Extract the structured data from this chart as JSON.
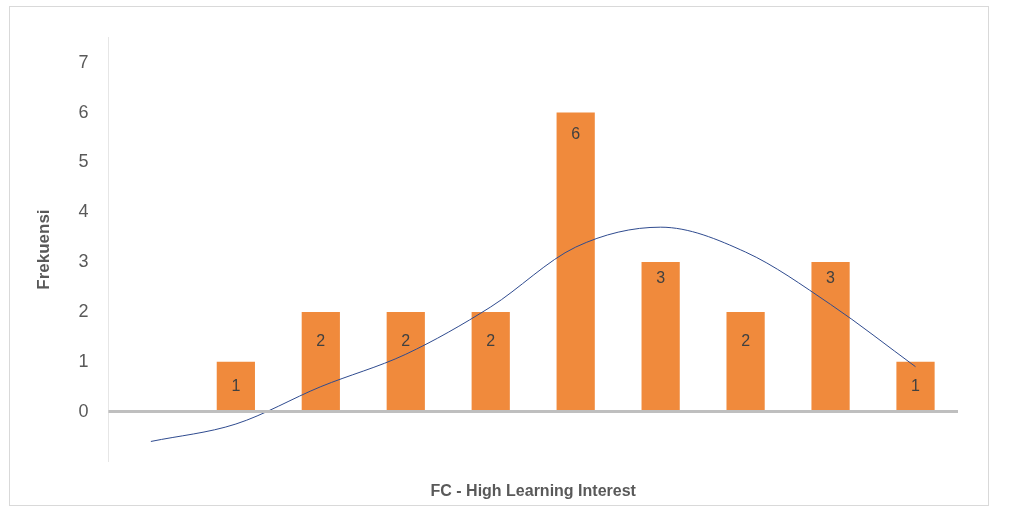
{
  "chart_data": {
    "type": "bar",
    "xlabel": "FC - High Learning Interest",
    "ylabel": "Frekuensi",
    "categories": [
      null,
      null,
      null,
      null,
      null,
      null,
      null,
      null,
      null,
      null
    ],
    "series": [
      {
        "color": "#f08a3c",
        "values": [
          null,
          1,
          2,
          2,
          2,
          6,
          3,
          2,
          3,
          1
        ],
        "value_labels": [
          null,
          "1",
          "2",
          "2",
          "2",
          "6",
          "3",
          "2",
          "3",
          "1"
        ]
      },
      {
        "type": "line",
        "color": "#2f4b8f",
        "values": [
          -0.6,
          -0.25,
          0.5,
          1.15,
          2.1,
          3.3,
          3.7,
          3.2,
          2.15,
          0.9
        ]
      }
    ],
    "ylim": [
      -1,
      7.5
    ],
    "yticks": [
      0,
      1,
      2,
      3,
      4,
      5,
      6,
      7
    ],
    "ref_lines": [
      {
        "axis": "y",
        "value": 0,
        "color": "#bfbfbf"
      }
    ],
    "grid": false,
    "legend": false,
    "marker": "none"
  }
}
